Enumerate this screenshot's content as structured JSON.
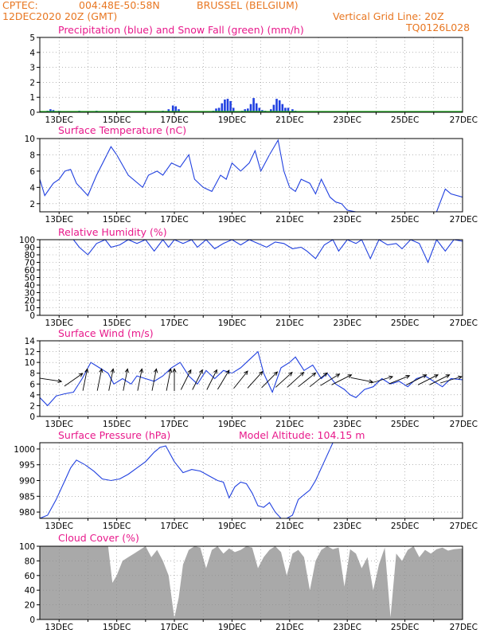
{
  "header": {
    "source": "CPTEC:",
    "coords": "004:48E-50:58N",
    "location": "BRUSSEL (BELGIUM)",
    "datetime": "12DEC2020 20Z (GMT)",
    "grid_note": "Vertical Grid Line: 20Z",
    "model_code": "TQ0126L028"
  },
  "colors": {
    "header": "#e87722",
    "title": "#e8198b",
    "line": "#2040e0",
    "snow": "#20b020",
    "cloud": "#a9a9a9",
    "grid": "#8a8a8a",
    "arrow": "#000000"
  },
  "chart_data": [
    {
      "type": "bar",
      "title": "Precipitation (blue) and Snow Fall (green) (mm/h)",
      "x_tick_labels": [
        "13DEC",
        "15DEC",
        "17DEC",
        "19DEC",
        "21DEC",
        "23DEC",
        "25DEC",
        "27DEC"
      ],
      "x_tick_days": [
        13,
        15,
        17,
        19,
        21,
        23,
        25,
        27
      ],
      "xlim_days": [
        12.33,
        27.0
      ],
      "ylim": [
        0,
        5
      ],
      "y_ticks": [
        0,
        1,
        2,
        3,
        4,
        5
      ],
      "series": [
        {
          "name": "Precipitation",
          "color": "blue",
          "x": [
            12.6,
            12.7,
            12.8,
            13.0,
            13.3,
            13.7,
            14.3,
            14.5,
            15.1,
            15.3,
            16.4,
            16.6,
            16.8,
            16.95,
            17.05,
            17.15,
            18.35,
            18.45,
            18.55,
            18.65,
            18.75,
            18.85,
            18.95,
            19.05,
            19.35,
            19.45,
            19.55,
            19.65,
            19.75,
            19.85,
            19.95,
            20.05,
            20.15,
            20.35,
            20.45,
            20.55,
            20.65,
            20.75,
            20.85,
            20.95,
            21.1,
            21.2,
            21.3,
            23.0,
            23.6,
            24.2,
            24.7,
            25.3,
            25.9
          ],
          "values": [
            0.1,
            0.2,
            0.15,
            0.1,
            0.05,
            0.1,
            0.1,
            0.05,
            0.05,
            0.05,
            0.05,
            0.1,
            0.2,
            0.45,
            0.4,
            0.2,
            0.1,
            0.25,
            0.3,
            0.6,
            0.85,
            0.9,
            0.75,
            0.3,
            0.1,
            0.2,
            0.25,
            0.55,
            0.95,
            0.6,
            0.3,
            0.15,
            0.1,
            0.2,
            0.5,
            0.9,
            0.8,
            0.55,
            0.3,
            0.3,
            0.2,
            0.1,
            0.05,
            0.05,
            0.05,
            0.05,
            0.05,
            0.05,
            0.05
          ]
        },
        {
          "name": "Snow Fall",
          "color": "green",
          "x": [
            12.33,
            27.0
          ],
          "values": [
            0.0,
            0.0
          ]
        }
      ]
    },
    {
      "type": "line",
      "title": "Surface Temperature (nC)",
      "x_tick_labels": [
        "13DEC",
        "15DEC",
        "17DEC",
        "19DEC",
        "21DEC",
        "23DEC",
        "25DEC",
        "27DEC"
      ],
      "ylim": [
        1,
        10
      ],
      "y_ticks": [
        2,
        4,
        6,
        8,
        10
      ],
      "x": [
        12.33,
        12.5,
        12.8,
        13.0,
        13.2,
        13.4,
        13.6,
        14.0,
        14.3,
        14.8,
        15.0,
        15.4,
        15.9,
        16.1,
        16.4,
        16.6,
        16.9,
        17.2,
        17.5,
        17.7,
        18.0,
        18.3,
        18.6,
        18.8,
        19.0,
        19.3,
        19.6,
        19.8,
        20.0,
        20.3,
        20.6,
        20.8,
        21.0,
        21.2,
        21.4,
        21.7,
        21.9,
        22.1,
        22.4,
        22.6,
        22.8,
        23.0,
        23.3,
        23.6,
        24.0,
        24.5,
        24.9,
        25.2,
        25.4,
        25.6,
        25.8,
        26.1,
        26.4,
        26.6,
        27.0
      ],
      "values": [
        5.0,
        3.0,
        4.5,
        5.0,
        6.0,
        6.2,
        4.5,
        3.0,
        5.5,
        9.0,
        8.0,
        5.5,
        4.0,
        5.5,
        6.0,
        5.5,
        7.0,
        6.5,
        8.0,
        5.0,
        4.0,
        3.5,
        5.5,
        5.0,
        7.0,
        6.0,
        7.0,
        8.5,
        6.0,
        8.0,
        9.8,
        6.0,
        4.0,
        3.5,
        5.0,
        4.5,
        3.2,
        5.0,
        2.8,
        2.2,
        2.0,
        1.2,
        0.5,
        0.7,
        0.4,
        0.6,
        0.2,
        0.3,
        0.4,
        0.3,
        0.2,
        0.5,
        3.8,
        3.2,
        2.8
      ]
    },
    {
      "type": "line",
      "title": "Relative Humidity (%)",
      "x_tick_labels": [
        "13DEC",
        "15DEC",
        "17DEC",
        "19DEC",
        "21DEC",
        "23DEC",
        "25DEC",
        "27DEC"
      ],
      "ylim": [
        0,
        100
      ],
      "y_ticks": [
        0,
        10,
        20,
        30,
        40,
        50,
        60,
        70,
        80,
        90,
        100
      ],
      "x": [
        12.33,
        13.0,
        13.3,
        13.5,
        13.7,
        14.0,
        14.3,
        14.6,
        14.8,
        15.1,
        15.4,
        15.7,
        16.0,
        16.3,
        16.6,
        16.8,
        17.0,
        17.3,
        17.6,
        17.8,
        18.1,
        18.4,
        18.7,
        19.0,
        19.3,
        19.6,
        19.9,
        20.2,
        20.5,
        20.8,
        21.1,
        21.4,
        21.6,
        21.9,
        22.2,
        22.5,
        22.7,
        23.0,
        23.3,
        23.5,
        23.8,
        24.1,
        24.4,
        24.7,
        24.9,
        25.2,
        25.5,
        25.8,
        26.1,
        26.4,
        26.7,
        27.0
      ],
      "values": [
        100,
        100,
        100,
        100,
        90,
        80,
        95,
        100,
        90,
        93,
        100,
        95,
        100,
        85,
        100,
        90,
        100,
        95,
        100,
        90,
        100,
        88,
        95,
        100,
        93,
        100,
        95,
        90,
        97,
        95,
        88,
        90,
        85,
        75,
        93,
        100,
        85,
        100,
        95,
        100,
        75,
        100,
        93,
        95,
        88,
        100,
        95,
        70,
        100,
        85,
        100,
        98
      ]
    },
    {
      "type": "line",
      "title": "Surface Wind (m/s)",
      "x_tick_labels": [
        "13DEC",
        "15DEC",
        "17DEC",
        "19DEC",
        "21DEC",
        "23DEC",
        "25DEC",
        "27DEC"
      ],
      "ylim": [
        0,
        14
      ],
      "y_ticks": [
        0,
        2,
        4,
        6,
        8,
        10,
        12,
        14
      ],
      "x": [
        12.33,
        12.6,
        12.9,
        13.2,
        13.5,
        13.8,
        14.1,
        14.4,
        14.7,
        14.9,
        15.2,
        15.5,
        15.7,
        16.0,
        16.3,
        16.6,
        16.9,
        17.2,
        17.5,
        17.8,
        18.1,
        18.4,
        18.7,
        19.0,
        19.3,
        19.6,
        19.9,
        20.1,
        20.4,
        20.7,
        21.0,
        21.2,
        21.5,
        21.8,
        22.1,
        22.3,
        22.6,
        22.9,
        23.1,
        23.3,
        23.6,
        23.9,
        24.2,
        24.5,
        24.8,
        25.1,
        25.4,
        25.7,
        26.0,
        26.3,
        26.6,
        27.0
      ],
      "values": [
        3.5,
        2.0,
        3.8,
        4.2,
        4.5,
        7.0,
        10.0,
        9.0,
        8.0,
        6.0,
        7.0,
        6.0,
        7.5,
        7.0,
        6.5,
        7.5,
        9.0,
        10.0,
        7.5,
        6.0,
        8.5,
        7.0,
        8.5,
        8.0,
        9.0,
        10.5,
        12.0,
        8.0,
        4.5,
        9.0,
        10.0,
        11.0,
        8.5,
        9.5,
        7.0,
        8.0,
        6.0,
        5.0,
        4.0,
        3.5,
        5.0,
        5.5,
        7.0,
        6.0,
        6.5,
        5.5,
        7.0,
        7.5,
        6.5,
        5.5,
        7.0,
        6.8
      ]
    },
    {
      "type": "line",
      "title": "Surface Pressure (hPa)",
      "annotation": "Model Altitude: 104.15 m",
      "x_tick_labels": [
        "13DEC",
        "15DEC",
        "17DEC",
        "19DEC",
        "21DEC",
        "23DEC",
        "25DEC",
        "27DEC"
      ],
      "ylim": [
        978,
        1002
      ],
      "y_ticks": [
        980,
        985,
        990,
        995,
        1000
      ],
      "x": [
        12.33,
        12.6,
        12.9,
        13.2,
        13.4,
        13.6,
        13.9,
        14.2,
        14.5,
        14.8,
        15.1,
        15.4,
        15.7,
        16.0,
        16.3,
        16.5,
        16.7,
        17.0,
        17.3,
        17.6,
        17.9,
        18.2,
        18.5,
        18.7,
        18.9,
        19.1,
        19.3,
        19.5,
        19.7,
        19.9,
        20.1,
        20.3,
        20.5,
        20.7,
        20.9,
        21.1,
        21.3,
        21.5,
        21.7,
        21.9,
        22.1,
        22.3,
        22.5
      ],
      "values": [
        977.5,
        979,
        984,
        990,
        994,
        996.5,
        995,
        993,
        990.5,
        990,
        990.5,
        992,
        994,
        996,
        999,
        1000.5,
        1001,
        996,
        992.5,
        993.5,
        993,
        991.5,
        990,
        989.5,
        984.5,
        988,
        989.5,
        989,
        986,
        982,
        981.5,
        983,
        980,
        977,
        976,
        979,
        984,
        985.5,
        987,
        990,
        994,
        998,
        1002
      ]
    },
    {
      "type": "area",
      "title": "Cloud Cover (%)",
      "x_tick_labels": [
        "13DEC",
        "15DEC",
        "17DEC",
        "19DEC",
        "21DEC",
        "23DEC",
        "25DEC",
        "27DEC"
      ],
      "ylim": [
        0,
        100
      ],
      "y_ticks": [
        0,
        20,
        40,
        60,
        80,
        100
      ],
      "x": [
        12.33,
        14.7,
        14.85,
        15.0,
        15.2,
        15.4,
        15.6,
        15.8,
        16.0,
        16.2,
        16.4,
        16.6,
        16.8,
        17.0,
        17.15,
        17.3,
        17.5,
        17.7,
        17.9,
        18.1,
        18.3,
        18.5,
        18.7,
        18.9,
        19.1,
        19.3,
        19.5,
        19.7,
        19.9,
        20.1,
        20.3,
        20.5,
        20.7,
        20.9,
        21.1,
        21.3,
        21.5,
        21.7,
        21.9,
        22.1,
        22.3,
        22.5,
        22.7,
        22.9,
        23.1,
        23.3,
        23.5,
        23.7,
        23.9,
        24.1,
        24.3,
        24.5,
        24.7,
        24.9,
        25.1,
        25.3,
        25.5,
        25.7,
        25.9,
        26.1,
        26.3,
        26.5,
        26.7,
        27.0
      ],
      "values": [
        100,
        100,
        50,
        60,
        80,
        85,
        90,
        95,
        100,
        85,
        95,
        80,
        60,
        2,
        30,
        75,
        95,
        100,
        98,
        70,
        95,
        100,
        90,
        97,
        92,
        95,
        100,
        98,
        70,
        85,
        95,
        100,
        92,
        60,
        90,
        95,
        85,
        40,
        80,
        95,
        100,
        96,
        98,
        45,
        96,
        90,
        70,
        85,
        40,
        75,
        98,
        3,
        90,
        80,
        95,
        100,
        85,
        95,
        90,
        96,
        98,
        94,
        96,
        97
      ]
    }
  ],
  "overlays": {
    "wind_arrows": [
      {
        "day": 12.7,
        "u": 1.0,
        "v": -0.15
      },
      {
        "day": 13.5,
        "u": 1.0,
        "v": 0.7
      },
      {
        "day": 13.9,
        "u": 0.2,
        "v": 1.0
      },
      {
        "day": 14.4,
        "u": 0.2,
        "v": 1.0
      },
      {
        "day": 14.8,
        "u": 0.2,
        "v": 1.0
      },
      {
        "day": 15.3,
        "u": 0.2,
        "v": 1.0
      },
      {
        "day": 15.8,
        "u": 0.2,
        "v": 1.0
      },
      {
        "day": 16.3,
        "u": 0.2,
        "v": 1.0
      },
      {
        "day": 16.8,
        "u": 0.2,
        "v": 1.0
      },
      {
        "day": 17.0,
        "u": 0.0,
        "v": 1.0
      },
      {
        "day": 17.4,
        "u": 0.5,
        "v": 1.0
      },
      {
        "day": 17.8,
        "u": 0.5,
        "v": 1.0
      },
      {
        "day": 18.3,
        "u": 0.5,
        "v": 1.0
      },
      {
        "day": 18.7,
        "u": 0.6,
        "v": 1.0
      },
      {
        "day": 19.3,
        "u": 0.8,
        "v": 1.0
      },
      {
        "day": 19.8,
        "u": 0.9,
        "v": 1.0
      },
      {
        "day": 20.3,
        "u": 1.0,
        "v": 1.0
      },
      {
        "day": 20.8,
        "u": 1.0,
        "v": 0.9
      },
      {
        "day": 21.2,
        "u": 1.0,
        "v": 0.9
      },
      {
        "day": 21.6,
        "u": 1.0,
        "v": 0.8
      },
      {
        "day": 22.0,
        "u": 1.0,
        "v": 0.8
      },
      {
        "day": 22.4,
        "u": 1.0,
        "v": 0.6
      },
      {
        "day": 22.8,
        "u": 1.0,
        "v": 0.5
      },
      {
        "day": 23.5,
        "u": 1.0,
        "v": -0.2
      },
      {
        "day": 24.2,
        "u": 1.0,
        "v": 0.3
      },
      {
        "day": 24.8,
        "u": 1.0,
        "v": 0.4
      },
      {
        "day": 25.4,
        "u": 1.0,
        "v": 0.5
      },
      {
        "day": 25.8,
        "u": 1.0,
        "v": 0.5
      },
      {
        "day": 26.2,
        "u": 1.0,
        "v": 0.5
      },
      {
        "day": 26.6,
        "u": 1.0,
        "v": 0.3
      }
    ]
  }
}
